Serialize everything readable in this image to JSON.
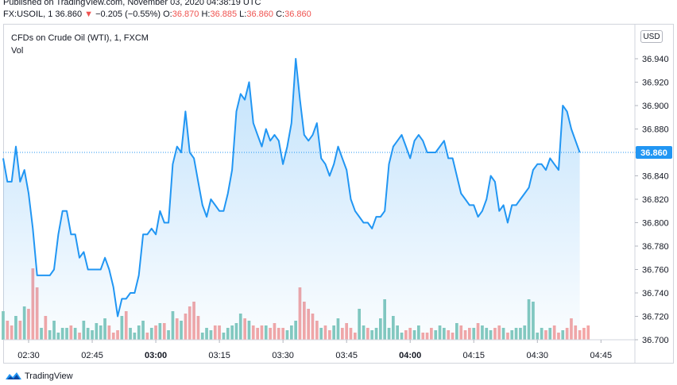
{
  "header": {
    "published": "Published on TradingView.com, November 03, 2020 04:38:19 UTC",
    "symbol": "FX:USOIL, 1",
    "last": "36.860",
    "arrow": "▼",
    "change": "−0.205 (−0.55%)",
    "o_label": "O:",
    "o_value": "36.870",
    "h_label": "H:",
    "h_value": "36.885",
    "l_label": "L:",
    "l_value": "36.860",
    "c_label": "C:",
    "c_value": "36.860"
  },
  "chart_title": "CFDs on Crude Oil (WTI), 1, FXCM",
  "vol_label": "Vol",
  "currency_button": "USD",
  "current_price_label": "36.860",
  "footer": {
    "brand": "TradingView"
  },
  "colors": {
    "line": "#2196f3",
    "up_volume": "#84c9be",
    "down_volume": "#f4a6a6",
    "price_tag": "#2196f3"
  },
  "chart_data": {
    "type": "line",
    "ylim": [
      36.7,
      36.95
    ],
    "y_ticks": [
      "36.700",
      "36.720",
      "36.740",
      "36.760",
      "36.780",
      "36.800",
      "36.820",
      "36.840",
      "36.860",
      "36.880",
      "36.900",
      "36.920",
      "36.940"
    ],
    "x_ticks": [
      "02:30",
      "02:45",
      "03:00",
      "03:15",
      "03:30",
      "03:45",
      "04:00",
      "04:15",
      "04:30",
      "04:45"
    ],
    "x_tick_minutes": [
      150,
      165,
      180,
      195,
      210,
      225,
      240,
      255,
      270,
      285
    ],
    "x_range_minutes": [
      144,
      293
    ],
    "current_price": 36.86,
    "x_start_minute": 144,
    "x_step_minutes": 1,
    "price": [
      36.855,
      36.835,
      36.835,
      36.865,
      36.835,
      36.845,
      36.825,
      36.795,
      36.755,
      36.755,
      36.755,
      36.755,
      36.76,
      36.79,
      36.81,
      36.81,
      36.79,
      36.79,
      36.77,
      36.775,
      36.76,
      36.76,
      36.76,
      36.76,
      36.77,
      36.76,
      36.745,
      36.72,
      36.735,
      36.735,
      36.74,
      36.74,
      36.755,
      36.79,
      36.79,
      36.795,
      36.79,
      36.81,
      36.8,
      36.8,
      36.85,
      36.865,
      36.86,
      36.895,
      36.86,
      36.855,
      36.835,
      36.815,
      36.805,
      36.82,
      36.815,
      36.81,
      36.81,
      36.825,
      36.845,
      36.895,
      36.91,
      36.905,
      36.92,
      36.885,
      36.875,
      36.865,
      36.88,
      36.87,
      36.875,
      36.87,
      36.85,
      36.865,
      36.885,
      36.94,
      36.905,
      36.875,
      36.87,
      36.875,
      36.885,
      36.855,
      36.85,
      36.84,
      36.85,
      36.865,
      36.855,
      36.845,
      36.82,
      36.81,
      36.805,
      36.8,
      36.8,
      36.795,
      36.805,
      36.805,
      36.81,
      36.85,
      36.865,
      36.87,
      36.875,
      36.865,
      36.855,
      36.87,
      36.875,
      36.87,
      36.86,
      36.86,
      36.86,
      36.865,
      36.87,
      36.855,
      36.855,
      36.84,
      36.825,
      36.82,
      36.815,
      36.815,
      36.805,
      36.81,
      36.82,
      36.84,
      36.835,
      36.81,
      36.815,
      36.8,
      36.815,
      36.815,
      36.82,
      36.825,
      36.83,
      36.845,
      36.85,
      36.85,
      36.845,
      36.855,
      36.85,
      36.845,
      36.9,
      36.895,
      36.88,
      36.87,
      36.86
    ],
    "volume": [
      12,
      8,
      6,
      10,
      8,
      14,
      13,
      30,
      22,
      5,
      10,
      4,
      8,
      3,
      5,
      5,
      6,
      5,
      3,
      8,
      5,
      4,
      7,
      6,
      9,
      6,
      3,
      4,
      10,
      12,
      5,
      3,
      6,
      8,
      3,
      5,
      6,
      7,
      7,
      4,
      12,
      9,
      8,
      11,
      14,
      16,
      10,
      3,
      5,
      4,
      6,
      6,
      3,
      5,
      6,
      7,
      11,
      9,
      8,
      6,
      5,
      6,
      6,
      5,
      7,
      5,
      5,
      4,
      6,
      8,
      22,
      16,
      13,
      11,
      8,
      5,
      6,
      4,
      6,
      9,
      5,
      7,
      5,
      3,
      13,
      6,
      5,
      4,
      5,
      9,
      17,
      5,
      10,
      6,
      3,
      4,
      5,
      4,
      6,
      3,
      3,
      5,
      4,
      6,
      5,
      4,
      3,
      7,
      6,
      4,
      5,
      5,
      7,
      6,
      5,
      4,
      5,
      6,
      5,
      3,
      4,
      5,
      5,
      6,
      17,
      16,
      3,
      5,
      4,
      5,
      6,
      3,
      4,
      5,
      9,
      6,
      4,
      5,
      6
    ],
    "volume_up": [
      true,
      false,
      false,
      true,
      false,
      true,
      false,
      false,
      false,
      true,
      false,
      true,
      true,
      true,
      true,
      true,
      false,
      true,
      false,
      true,
      true,
      true,
      true,
      true,
      true,
      false,
      false,
      false,
      true,
      false,
      true,
      true,
      true,
      true,
      false,
      true,
      false,
      true,
      false,
      true,
      true,
      false,
      true,
      false,
      false,
      false,
      false,
      true,
      true,
      true,
      false,
      false,
      true,
      true,
      true,
      true,
      true,
      false,
      true,
      false,
      false,
      false,
      true,
      false,
      false,
      false,
      false,
      true,
      true,
      true,
      false,
      false,
      false,
      false,
      false,
      true,
      false,
      false,
      true,
      true,
      false,
      false,
      false,
      false,
      true,
      true,
      false,
      true,
      true,
      true,
      true,
      true,
      true,
      true,
      true,
      false,
      false,
      true,
      true,
      false,
      false,
      false,
      true,
      true,
      true,
      false,
      false,
      true,
      false,
      false,
      false,
      true,
      false,
      true,
      true,
      true,
      false,
      false,
      true,
      false,
      true,
      true,
      true,
      true,
      true,
      true,
      true,
      true,
      false,
      true,
      false,
      false,
      true,
      false,
      false,
      false,
      false,
      false,
      false
    ]
  }
}
